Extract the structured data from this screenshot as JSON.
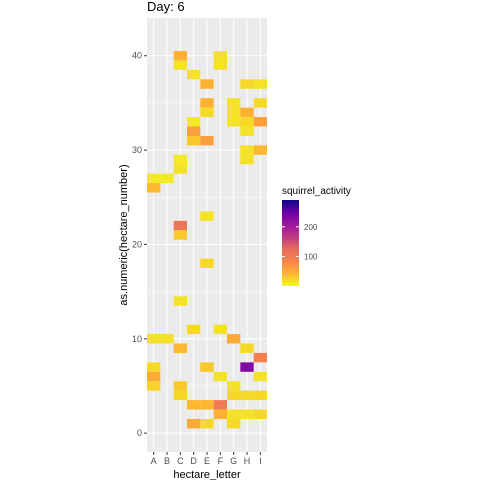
{
  "chart_data": {
    "type": "heatmap",
    "title": "Day: 6",
    "xlabel": "hectare_letter",
    "ylabel": "as.numeric(hectare_number)",
    "x_categories": [
      "A",
      "B",
      "C",
      "D",
      "E",
      "F",
      "G",
      "H",
      "I"
    ],
    "ylim": [
      -2,
      44
    ],
    "yticks": [
      0,
      10,
      20,
      30,
      40
    ],
    "grid": true,
    "legend": {
      "title": "squirrel_activity",
      "placement": "right",
      "min": 1,
      "max": 290,
      "ticks": [
        100,
        200
      ],
      "palette": [
        "#F0F921",
        "#FDB42F",
        "#F7844E",
        "#E66C5C",
        "#C03A83",
        "#9C179E",
        "#6A00A8",
        "#0D0887"
      ]
    },
    "cells": [
      {
        "x": "A",
        "y": 27,
        "value": 10
      },
      {
        "x": "A",
        "y": 26,
        "value": 40
      },
      {
        "x": "A",
        "y": 10,
        "value": 15
      },
      {
        "x": "A",
        "y": 7,
        "value": 20
      },
      {
        "x": "A",
        "y": 6,
        "value": 50
      },
      {
        "x": "A",
        "y": 5,
        "value": 25
      },
      {
        "x": "B",
        "y": 27,
        "value": 10
      },
      {
        "x": "B",
        "y": 10,
        "value": 15
      },
      {
        "x": "C",
        "y": 40,
        "value": 45
      },
      {
        "x": "C",
        "y": 39,
        "value": 15
      },
      {
        "x": "C",
        "y": 29,
        "value": 10
      },
      {
        "x": "C",
        "y": 28,
        "value": 15
      },
      {
        "x": "C",
        "y": 22,
        "value": 110
      },
      {
        "x": "C",
        "y": 21,
        "value": 30
      },
      {
        "x": "C",
        "y": 14,
        "value": 15
      },
      {
        "x": "C",
        "y": 9,
        "value": 40
      },
      {
        "x": "C",
        "y": 5,
        "value": 30
      },
      {
        "x": "C",
        "y": 4,
        "value": 20
      },
      {
        "x": "D",
        "y": 38,
        "value": 15
      },
      {
        "x": "D",
        "y": 33,
        "value": 10
      },
      {
        "x": "D",
        "y": 32,
        "value": 60
      },
      {
        "x": "D",
        "y": 31,
        "value": 30
      },
      {
        "x": "D",
        "y": 11,
        "value": 20
      },
      {
        "x": "D",
        "y": 3,
        "value": 40
      },
      {
        "x": "D",
        "y": 1,
        "value": 50
      },
      {
        "x": "E",
        "y": 37,
        "value": 45
      },
      {
        "x": "E",
        "y": 35,
        "value": 45
      },
      {
        "x": "E",
        "y": 34,
        "value": 20
      },
      {
        "x": "E",
        "y": 31,
        "value": 60
      },
      {
        "x": "E",
        "y": 23,
        "value": 15
      },
      {
        "x": "E",
        "y": 18,
        "value": 20
      },
      {
        "x": "E",
        "y": 7,
        "value": 30
      },
      {
        "x": "E",
        "y": 3,
        "value": 40
      },
      {
        "x": "E",
        "y": 1,
        "value": 20
      },
      {
        "x": "F",
        "y": 40,
        "value": 15
      },
      {
        "x": "F",
        "y": 39,
        "value": 15
      },
      {
        "x": "F",
        "y": 11,
        "value": 15
      },
      {
        "x": "F",
        "y": 6,
        "value": 15
      },
      {
        "x": "F",
        "y": 3,
        "value": 100
      },
      {
        "x": "F",
        "y": 2,
        "value": 45
      },
      {
        "x": "G",
        "y": 35,
        "value": 15
      },
      {
        "x": "G",
        "y": 34,
        "value": 15
      },
      {
        "x": "G",
        "y": 33,
        "value": 15
      },
      {
        "x": "G",
        "y": 10,
        "value": 50
      },
      {
        "x": "G",
        "y": 5,
        "value": 15
      },
      {
        "x": "G",
        "y": 4,
        "value": 20
      },
      {
        "x": "G",
        "y": 2,
        "value": 15
      },
      {
        "x": "G",
        "y": 1,
        "value": 20
      },
      {
        "x": "H",
        "y": 37,
        "value": 20
      },
      {
        "x": "H",
        "y": 34,
        "value": 45
      },
      {
        "x": "H",
        "y": 33,
        "value": 20
      },
      {
        "x": "H",
        "y": 32,
        "value": 15
      },
      {
        "x": "H",
        "y": 30,
        "value": 15
      },
      {
        "x": "H",
        "y": 29,
        "value": 15
      },
      {
        "x": "H",
        "y": 9,
        "value": 20
      },
      {
        "x": "H",
        "y": 7,
        "value": 230
      },
      {
        "x": "H",
        "y": 4,
        "value": 20
      },
      {
        "x": "H",
        "y": 2,
        "value": 15
      },
      {
        "x": "I",
        "y": 37,
        "value": 15
      },
      {
        "x": "I",
        "y": 35,
        "value": 20
      },
      {
        "x": "I",
        "y": 33,
        "value": 60
      },
      {
        "x": "I",
        "y": 30,
        "value": 40
      },
      {
        "x": "I",
        "y": 8,
        "value": 90
      },
      {
        "x": "I",
        "y": 6,
        "value": 15
      },
      {
        "x": "I",
        "y": 4,
        "value": 20
      },
      {
        "x": "I",
        "y": 2,
        "value": 20
      }
    ]
  }
}
